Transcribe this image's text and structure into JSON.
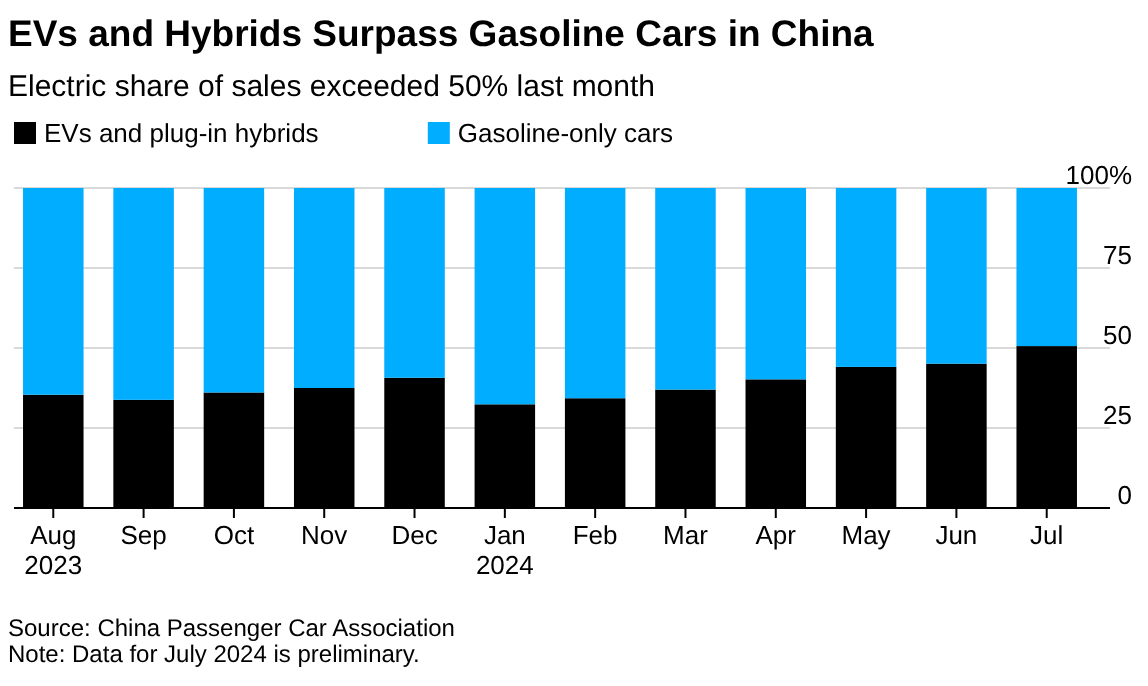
{
  "chart_data": {
    "type": "bar",
    "title": "EVs and Hybrids Surpass Gasoline Cars in China",
    "subtitle": "Electric share of sales exceeded 50% last month",
    "categories": [
      "Aug\n2023",
      "Sep",
      "Oct",
      "Nov",
      "Dec",
      "Jan\n2024",
      "Feb",
      "Mar",
      "Apr",
      "May",
      "Jun",
      "Jul"
    ],
    "series": [
      {
        "name": "EVs and plug-in hybrids",
        "color": "#000000",
        "values": [
          35.4,
          33.8,
          36.1,
          37.5,
          40.7,
          32.4,
          34.3,
          37,
          40.2,
          44.1,
          45.1,
          50.6
        ]
      },
      {
        "name": "Gasoline-only cars",
        "color": "#00adfe",
        "values": [
          64.6,
          66.2,
          63.9,
          62.5,
          59.3,
          67.6,
          65.7,
          63,
          59.8,
          55.9,
          54.9,
          49.4
        ]
      }
    ],
    "stacked": true,
    "ylim": [
      0,
      100
    ],
    "yticks": [
      0,
      25,
      50,
      75,
      {
        "value": 100,
        "label": "100%"
      }
    ],
    "grid": "y",
    "legend": "top left",
    "annotations": [
      "Source: China Passenger Car Association",
      "Note: Data for July 2024 is preliminary."
    ]
  }
}
